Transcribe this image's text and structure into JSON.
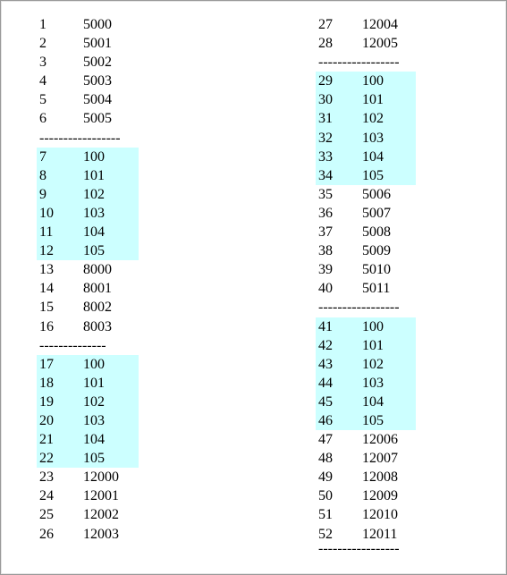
{
  "left_column": [
    {
      "type": "row",
      "n": "1",
      "v": "5000"
    },
    {
      "type": "row",
      "n": "2",
      "v": "5001"
    },
    {
      "type": "row",
      "n": "3",
      "v": "5002"
    },
    {
      "type": "row",
      "n": "4",
      "v": "5003"
    },
    {
      "type": "row",
      "n": "5",
      "v": "5004"
    },
    {
      "type": "row",
      "n": "6",
      "v": "5005"
    },
    {
      "type": "sep",
      "text": "-----------------"
    },
    {
      "type": "row",
      "n": "7",
      "v": "100",
      "hl": true
    },
    {
      "type": "row",
      "n": "8",
      "v": "101",
      "hl": true
    },
    {
      "type": "row",
      "n": "9",
      "v": "102",
      "hl": true
    },
    {
      "type": "row",
      "n": "10",
      "v": "103",
      "hl": true
    },
    {
      "type": "row",
      "n": "11",
      "v": "104",
      "hl": true
    },
    {
      "type": "row",
      "n": "12",
      "v": "105",
      "hl": true
    },
    {
      "type": "row",
      "n": "13",
      "v": "8000"
    },
    {
      "type": "row",
      "n": "14",
      "v": "8001"
    },
    {
      "type": "row",
      "n": "15",
      "v": "8002"
    },
    {
      "type": "row",
      "n": "16",
      "v": "8003"
    },
    {
      "type": "sep",
      "text": "--------------"
    },
    {
      "type": "row",
      "n": "17",
      "v": "100",
      "hl": true
    },
    {
      "type": "row",
      "n": "18",
      "v": "101",
      "hl": true
    },
    {
      "type": "row",
      "n": "19",
      "v": "102",
      "hl": true
    },
    {
      "type": "row",
      "n": "20",
      "v": "103",
      "hl": true
    },
    {
      "type": "row",
      "n": "21",
      "v": "104",
      "hl": true
    },
    {
      "type": "row",
      "n": "22",
      "v": "105",
      "hl": true
    },
    {
      "type": "row",
      "n": "23",
      "v": "12000"
    },
    {
      "type": "row",
      "n": "24",
      "v": "12001"
    },
    {
      "type": "row",
      "n": "25",
      "v": "12002"
    },
    {
      "type": "row",
      "n": "26",
      "v": "12003"
    }
  ],
  "right_column": [
    {
      "type": "row",
      "n": "27",
      "v": "12004"
    },
    {
      "type": "row",
      "n": "28",
      "v": "12005"
    },
    {
      "type": "sep",
      "text": "-----------------"
    },
    {
      "type": "row",
      "n": "29",
      "v": "100",
      "hl": true
    },
    {
      "type": "row",
      "n": "30",
      "v": "101",
      "hl": true
    },
    {
      "type": "row",
      "n": "31",
      "v": "102",
      "hl": true
    },
    {
      "type": "row",
      "n": "32",
      "v": "103",
      "hl": true
    },
    {
      "type": "row",
      "n": "33",
      "v": "104",
      "hl": true
    },
    {
      "type": "row",
      "n": "34",
      "v": "105",
      "hl": true
    },
    {
      "type": "row",
      "n": "35",
      "v": "5006"
    },
    {
      "type": "row",
      "n": "36",
      "v": "5007"
    },
    {
      "type": "row",
      "n": "37",
      "v": "5008"
    },
    {
      "type": "row",
      "n": "38",
      "v": "5009"
    },
    {
      "type": "row",
      "n": "39",
      "v": "5010"
    },
    {
      "type": "row",
      "n": "40",
      "v": "5011"
    },
    {
      "type": "sep",
      "text": "-----------------"
    },
    {
      "type": "row",
      "n": "41",
      "v": "100",
      "hl": true
    },
    {
      "type": "row",
      "n": "42",
      "v": "101",
      "hl": true
    },
    {
      "type": "row",
      "n": "43",
      "v": "102",
      "hl": true
    },
    {
      "type": "row",
      "n": "44",
      "v": "103",
      "hl": true
    },
    {
      "type": "row",
      "n": "45",
      "v": "104",
      "hl": true
    },
    {
      "type": "row",
      "n": "46",
      "v": "105",
      "hl": true
    },
    {
      "type": "row",
      "n": "47",
      "v": "12006"
    },
    {
      "type": "row",
      "n": "48",
      "v": "12007"
    },
    {
      "type": "row",
      "n": "49",
      "v": "12008"
    },
    {
      "type": "row",
      "n": "50",
      "v": "12009"
    },
    {
      "type": "row",
      "n": "51",
      "v": "12010"
    },
    {
      "type": "row",
      "n": "52",
      "v": "12011"
    }
  ],
  "bottom_separator": "-----------------",
  "highlight_color": "#ccffff"
}
